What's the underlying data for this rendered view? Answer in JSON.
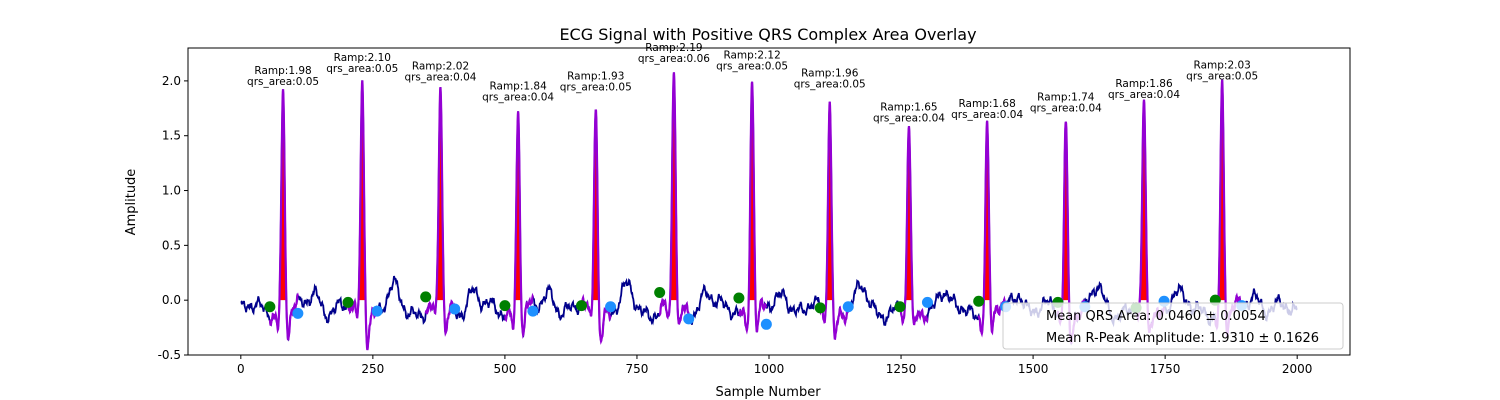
{
  "chart_data": {
    "type": "line",
    "title": "ECG Signal with Positive QRS Complex Area Overlay",
    "xlabel": "Sample Number",
    "ylabel": "Amplitude",
    "xlim": [
      -100,
      2100
    ],
    "ylim": [
      -0.5,
      2.3
    ],
    "xticks": [
      0,
      250,
      500,
      750,
      1000,
      1250,
      1500,
      1750,
      2000
    ],
    "yticks": [
      -0.5,
      0.0,
      0.5,
      1.0,
      1.5,
      2.0
    ],
    "grid": false,
    "colors": {
      "signal": "#00008b",
      "qrs": "#9400d3",
      "area": "#ff0000",
      "qrs_onset": "#008000",
      "qrs_offset": "#1e90ff"
    },
    "beats": [
      {
        "r_peak": 80,
        "ramp": 1.98,
        "qrs_area": 0.05,
        "ramp_label": "Ramp:1.98",
        "area_label": "qrs_area:0.05",
        "onset": 55,
        "onset_y": -0.06,
        "offset": 108,
        "offset_y": -0.12
      },
      {
        "r_peak": 230,
        "ramp": 2.1,
        "qrs_area": 0.05,
        "ramp_label": "Ramp:2.10",
        "area_label": "qrs_area:0.05",
        "onset": 203,
        "onset_y": -0.02,
        "offset": 258,
        "offset_y": -0.1
      },
      {
        "r_peak": 378,
        "ramp": 2.02,
        "qrs_area": 0.04,
        "ramp_label": "Ramp:2.02",
        "area_label": "qrs_area:0.04",
        "onset": 350,
        "onset_y": 0.03,
        "offset": 405,
        "offset_y": -0.08
      },
      {
        "r_peak": 525,
        "ramp": 1.84,
        "qrs_area": 0.04,
        "ramp_label": "Ramp:1.84",
        "area_label": "qrs_area:0.04",
        "onset": 500,
        "onset_y": -0.05,
        "offset": 553,
        "offset_y": -0.1
      },
      {
        "r_peak": 672,
        "ramp": 1.93,
        "qrs_area": 0.05,
        "ramp_label": "Ramp:1.93",
        "area_label": "qrs_area:0.05",
        "onset": 645,
        "onset_y": -0.05,
        "offset": 700,
        "offset_y": -0.06
      },
      {
        "r_peak": 820,
        "ramp": 2.19,
        "qrs_area": 0.06,
        "ramp_label": "Ramp:2.19",
        "area_label": "qrs_area:0.06",
        "onset": 793,
        "onset_y": 0.07,
        "offset": 848,
        "offset_y": -0.17
      },
      {
        "r_peak": 968,
        "ramp": 2.12,
        "qrs_area": 0.05,
        "ramp_label": "Ramp:2.12",
        "area_label": "qrs_area:0.05",
        "onset": 943,
        "onset_y": 0.02,
        "offset": 995,
        "offset_y": -0.22
      },
      {
        "r_peak": 1115,
        "ramp": 1.96,
        "qrs_area": 0.05,
        "ramp_label": "Ramp:1.96",
        "area_label": "qrs_area:0.05",
        "onset": 1097,
        "onset_y": -0.07,
        "offset": 1150,
        "offset_y": -0.06
      },
      {
        "r_peak": 1265,
        "ramp": 1.65,
        "qrs_area": 0.04,
        "ramp_label": "Ramp:1.65",
        "area_label": "qrs_area:0.04",
        "onset": 1248,
        "onset_y": -0.06,
        "offset": 1300,
        "offset_y": -0.02
      },
      {
        "r_peak": 1413,
        "ramp": 1.68,
        "qrs_area": 0.04,
        "ramp_label": "Ramp:1.68",
        "area_label": "qrs_area:0.04",
        "onset": 1397,
        "onset_y": -0.01,
        "offset": 1448,
        "offset_y": -0.06
      },
      {
        "r_peak": 1562,
        "ramp": 1.74,
        "qrs_area": 0.04,
        "ramp_label": "Ramp:1.74",
        "area_label": "qrs_area:0.04",
        "onset": 1547,
        "onset_y": -0.02,
        "offset": 1598,
        "offset_y": -0.06
      },
      {
        "r_peak": 1710,
        "ramp": 1.86,
        "qrs_area": 0.04,
        "ramp_label": "Ramp:1.86",
        "area_label": "qrs_area:0.04",
        "onset": 1695,
        "onset_y": -0.07,
        "offset": 1748,
        "offset_y": -0.01
      },
      {
        "r_peak": 1858,
        "ramp": 2.03,
        "qrs_area": 0.05,
        "ramp_label": "Ramp:2.03",
        "area_label": "qrs_area:0.05",
        "onset": 1845,
        "onset_y": 0.0,
        "offset": 1895,
        "offset_y": -0.05
      }
    ],
    "legend": {
      "location": "lower right",
      "entries": [
        "Mean QRS Area: 0.0460 ± 0.0054",
        "Mean R-Peak Amplitude: 1.9310 ± 0.1626"
      ]
    }
  }
}
